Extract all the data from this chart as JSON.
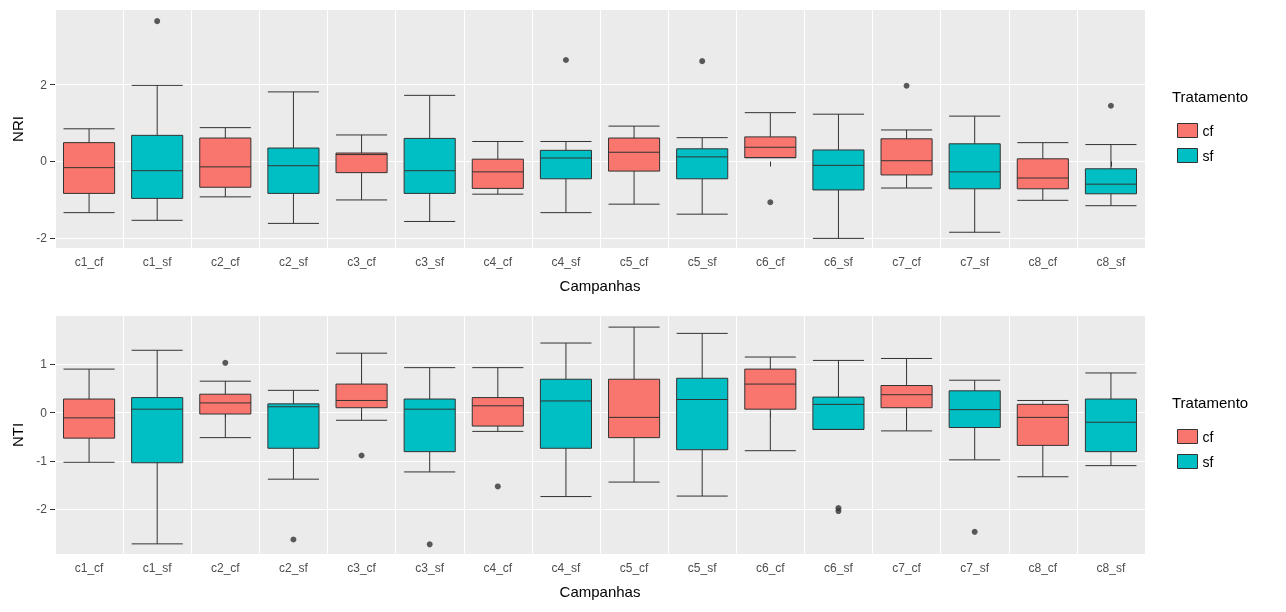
{
  "chart_data": [
    {
      "type": "box",
      "xlabel": "Campanhas",
      "ylabel": "NRI",
      "legend_title": "Tratamento",
      "legend": "right",
      "grid": true,
      "ylim": [
        -2.25,
        3.94
      ],
      "yticks": [
        -2,
        0,
        2
      ],
      "categories": [
        "c1_cf",
        "c1_sf",
        "c2_cf",
        "c2_sf",
        "c3_cf",
        "c3_sf",
        "c4_cf",
        "c4_sf",
        "c5_cf",
        "c5_sf",
        "c6_cf",
        "c6_sf",
        "c7_cf",
        "c7_sf",
        "c8_cf",
        "c8_sf"
      ],
      "series": [
        {
          "name": "cf",
          "color": "#f8766d",
          "boxes": [
            {
              "low": -1.33,
              "q1": -0.83,
              "median": -0.16,
              "q3": 0.49,
              "high": 0.85
            },
            null,
            {
              "low": -0.92,
              "q1": -0.67,
              "median": -0.14,
              "q3": 0.61,
              "high": 0.88
            },
            null,
            {
              "low": -1.0,
              "q1": -0.29,
              "median": 0.18,
              "q3": 0.22,
              "high": 0.69
            },
            null,
            {
              "low": -0.85,
              "q1": -0.7,
              "median": -0.27,
              "q3": 0.06,
              "high": 0.52
            },
            null,
            {
              "low": -1.11,
              "q1": -0.25,
              "median": 0.24,
              "q3": 0.61,
              "high": 0.92
            },
            null,
            {
              "low": 0.1,
              "q1": 0.1,
              "median": 0.37,
              "q3": 0.64,
              "high": 1.27,
              "outliers": [
                -1.06
              ]
            },
            null,
            {
              "low": -0.69,
              "q1": -0.35,
              "median": 0.02,
              "q3": 0.59,
              "high": 0.82,
              "outliers": [
                1.97
              ]
            },
            null,
            {
              "low": -1.01,
              "q1": -0.71,
              "median": -0.43,
              "q3": 0.07,
              "high": 0.49
            },
            null
          ]
        },
        {
          "name": "sf",
          "color": "#00bfc4",
          "boxes": [
            null,
            {
              "low": -1.53,
              "q1": -0.96,
              "median": -0.24,
              "q3": 0.68,
              "high": 1.98,
              "outliers": [
                3.65
              ]
            },
            null,
            {
              "low": -1.61,
              "q1": -0.83,
              "median": -0.11,
              "q3": 0.35,
              "high": 1.81
            },
            null,
            {
              "low": -1.56,
              "q1": -0.83,
              "median": -0.24,
              "q3": 0.6,
              "high": 1.72
            },
            null,
            {
              "low": -1.33,
              "q1": -0.45,
              "median": 0.09,
              "q3": 0.29,
              "high": 0.52,
              "outliers": [
                2.64
              ]
            },
            null,
            {
              "low": -1.37,
              "q1": -0.45,
              "median": 0.12,
              "q3": 0.33,
              "high": 0.62,
              "outliers": [
                2.61
              ]
            },
            null,
            {
              "low": -2.0,
              "q1": -0.74,
              "median": -0.1,
              "q3": 0.3,
              "high": 1.23
            },
            null,
            {
              "low": -1.84,
              "q1": -0.71,
              "median": -0.27,
              "q3": 0.46,
              "high": 1.18
            },
            null,
            {
              "low": -1.15,
              "q1": -0.84,
              "median": -0.59,
              "q3": -0.19,
              "high": 0.44,
              "outliers": [
                1.45
              ]
            }
          ]
        }
      ]
    },
    {
      "type": "box",
      "xlabel": "Campanhas",
      "ylabel": "NTI",
      "legend_title": "Tratamento",
      "legend": "right",
      "grid": true,
      "ylim": [
        -2.93,
        2.0
      ],
      "yticks": [
        -2,
        -1,
        0,
        1
      ],
      "categories": [
        "c1_cf",
        "c1_sf",
        "c2_cf",
        "c2_sf",
        "c3_cf",
        "c3_sf",
        "c4_cf",
        "c4_sf",
        "c5_cf",
        "c5_sf",
        "c6_cf",
        "c6_sf",
        "c7_cf",
        "c7_sf",
        "c8_cf",
        "c8_sf"
      ],
      "series": [
        {
          "name": "cf",
          "color": "#f8766d",
          "boxes": [
            {
              "low": -1.03,
              "q1": -0.53,
              "median": -0.11,
              "q3": 0.28,
              "high": 0.9
            },
            null,
            {
              "low": -0.52,
              "q1": -0.03,
              "median": 0.2,
              "q3": 0.38,
              "high": 0.65,
              "outliers": [
                1.03
              ]
            },
            null,
            {
              "low": -0.16,
              "q1": 0.1,
              "median": 0.25,
              "q3": 0.59,
              "high": 1.23,
              "outliers": [
                -0.89
              ]
            },
            null,
            {
              "low": -0.39,
              "q1": -0.28,
              "median": 0.14,
              "q3": 0.31,
              "high": 0.93,
              "outliers": [
                -1.53
              ]
            },
            null,
            {
              "low": -1.44,
              "q1": -0.52,
              "median": -0.1,
              "q3": 0.69,
              "high": 1.77
            },
            null,
            {
              "low": -0.79,
              "q1": 0.07,
              "median": 0.59,
              "q3": 0.9,
              "high": 1.15
            },
            null,
            {
              "low": -0.38,
              "q1": 0.1,
              "median": 0.37,
              "q3": 0.56,
              "high": 1.12
            },
            null,
            {
              "low": -1.33,
              "q1": -0.68,
              "median": -0.1,
              "q3": 0.17,
              "high": 0.25
            },
            null
          ]
        },
        {
          "name": "sf",
          "color": "#00bfc4",
          "boxes": [
            null,
            {
              "low": -2.72,
              "q1": -1.04,
              "median": 0.07,
              "q3": 0.31,
              "high": 1.29
            },
            null,
            {
              "low": -1.38,
              "q1": -0.74,
              "median": 0.12,
              "q3": 0.18,
              "high": 0.46,
              "outliers": [
                -2.63
              ]
            },
            null,
            {
              "low": -1.23,
              "q1": -0.81,
              "median": 0.07,
              "q3": 0.28,
              "high": 0.93,
              "outliers": [
                -2.73
              ]
            },
            null,
            {
              "low": -1.74,
              "q1": -0.74,
              "median": 0.24,
              "q3": 0.69,
              "high": 1.44
            },
            null,
            {
              "low": -1.73,
              "q1": -0.77,
              "median": 0.27,
              "q3": 0.71,
              "high": 1.64
            },
            null,
            {
              "low": -0.35,
              "q1": -0.35,
              "median": 0.17,
              "q3": 0.32,
              "high": 1.08,
              "outliers": [
                -1.98,
                -2.04
              ]
            },
            null,
            {
              "low": -0.98,
              "q1": -0.31,
              "median": 0.06,
              "q3": 0.45,
              "high": 0.67,
              "outliers": [
                -2.47
              ]
            },
            null,
            {
              "low": -1.1,
              "q1": -0.81,
              "median": -0.2,
              "q3": 0.28,
              "high": 0.82
            }
          ]
        }
      ]
    }
  ]
}
